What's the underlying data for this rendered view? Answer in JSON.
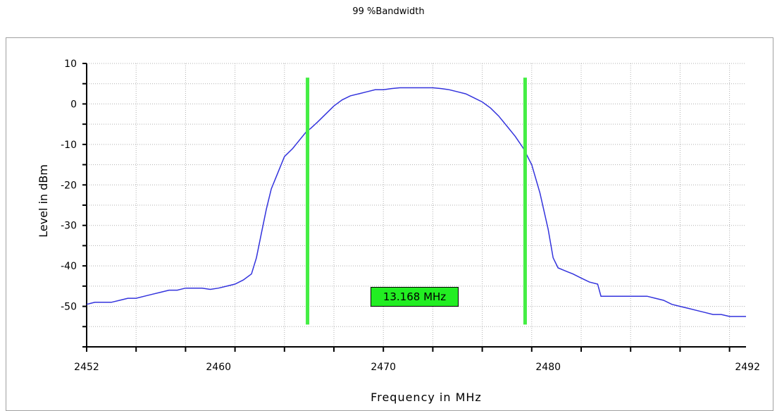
{
  "title": "99 %Bandwidth",
  "colors": {
    "trace": "#3333dd",
    "marker": "#44ee44",
    "label_bg": "#22ee22",
    "grid": "#b0b0b0"
  },
  "chart_data": {
    "type": "line",
    "title": "99 %Bandwidth",
    "xlabel": "Frequency in MHz",
    "ylabel": "Level in dBm",
    "xlim": [
      2452,
      2492
    ],
    "ylim": [
      -60,
      10
    ],
    "x_ticks": [
      2452,
      2460,
      2470,
      2480,
      2492
    ],
    "x_tick_labels": [
      "2452",
      "2460",
      "2470",
      "2480",
      "2492"
    ],
    "y_ticks": [
      10,
      0,
      -10,
      -20,
      -30,
      -40,
      -50
    ],
    "y_tick_labels": [
      "10",
      "0",
      "-10",
      "-20",
      "-30",
      "-40",
      "-50"
    ],
    "grid": true,
    "series": [
      {
        "x": [
          2452,
          2452.5,
          2453,
          2453.5,
          2454,
          2454.5,
          2455,
          2455.5,
          2456,
          2456.5,
          2457,
          2457.5,
          2458,
          2458.5,
          2459,
          2459.5,
          2460,
          2460.5,
          2461,
          2461.5,
          2462,
          2462.3,
          2462.6,
          2462.9,
          2463.2,
          2463.5,
          2464,
          2464.5,
          2465,
          2465.3,
          2465.6,
          2466,
          2466.5,
          2467,
          2467.5,
          2468,
          2468.5,
          2469,
          2469.5,
          2470,
          2470.5,
          2471,
          2471.5,
          2472,
          2472.5,
          2473,
          2473.5,
          2474,
          2474.5,
          2475,
          2475.5,
          2476,
          2476.5,
          2477,
          2477.5,
          2478,
          2478.5,
          2479,
          2479.5,
          2480,
          2480.3,
          2480.6,
          2480.9,
          2481.2,
          2481.5,
          2482,
          2482.5,
          2483,
          2483.2,
          2483.5,
          2484,
          2484.5,
          2485,
          2485.5,
          2486,
          2486.5,
          2487,
          2487.5,
          2488,
          2488.5,
          2489,
          2489.5,
          2490,
          2490.5,
          2491,
          2491.5,
          2492
        ],
        "y": [
          -49.5,
          -49,
          -49,
          -49,
          -48.5,
          -48,
          -48,
          -47.5,
          -47,
          -46.5,
          -46,
          -46,
          -45.5,
          -45.5,
          -45.5,
          -45.8,
          -45.5,
          -45,
          -44.5,
          -43.5,
          -42,
          -38,
          -32,
          -26,
          -21,
          -18,
          -13,
          -11,
          -8.5,
          -7,
          -6,
          -4.5,
          -2.5,
          -0.5,
          1,
          2,
          2.5,
          3,
          3.5,
          3.5,
          3.8,
          4,
          4,
          4,
          4,
          4,
          3.8,
          3.5,
          3,
          2.5,
          1.5,
          0.5,
          -1,
          -3,
          -5.5,
          -8,
          -11,
          -15,
          -22,
          -31,
          -38,
          -40.5,
          -41,
          -41.5,
          -42,
          -43,
          -44,
          -44.5,
          -47.5,
          -47.5,
          -47.5,
          -47.5,
          -47.5,
          -47.5,
          -47.5,
          -48,
          -48.5,
          -49.5,
          -50,
          -50.5,
          -51,
          -51.5,
          -52,
          -52,
          -52.5,
          -52.5,
          -52.5
        ]
      }
    ],
    "markers": [
      2465.4,
      2478.6
    ],
    "annotation": "13.168 MHz"
  }
}
